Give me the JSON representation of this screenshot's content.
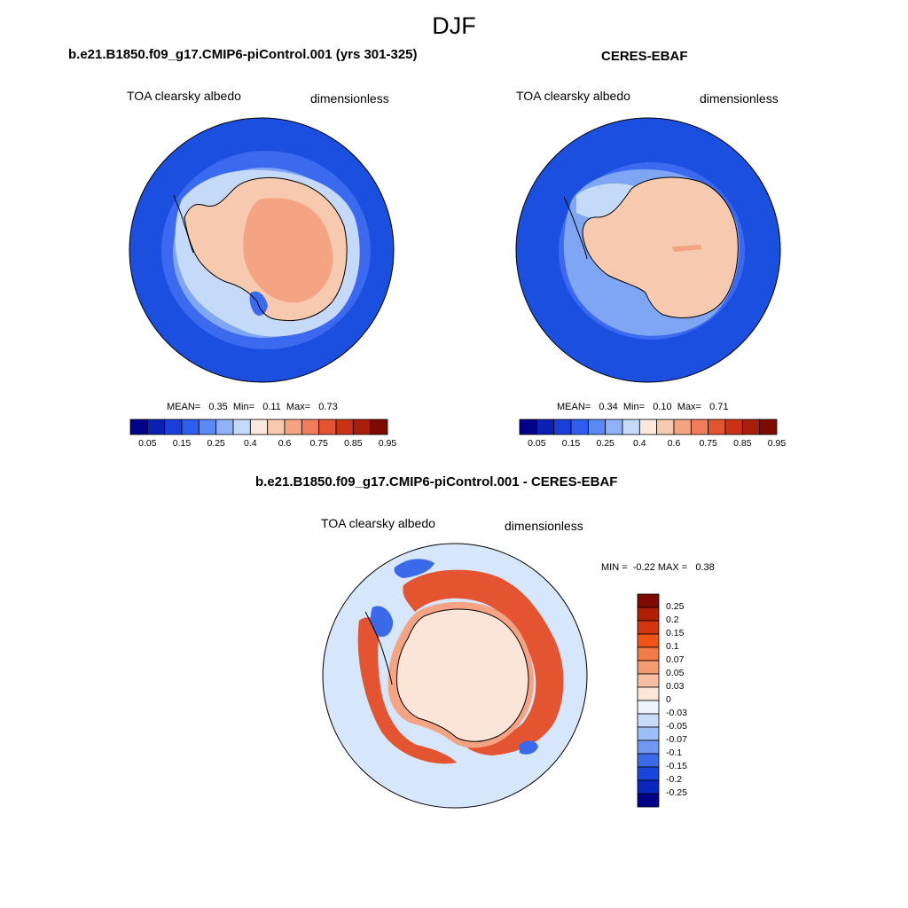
{
  "title": "DJF",
  "panels": {
    "model": {
      "title": "b.e21.B1850.f09_g17.CMIP6-piControl.001 (yrs 301-325)",
      "variable": "TOA clearsky albedo",
      "units": "dimensionless",
      "stats": "MEAN=   0.35  Min=   0.11  Max=   0.73"
    },
    "obs": {
      "title": "CERES-EBAF",
      "variable": "TOA clearsky albedo",
      "units": "dimensionless",
      "stats": "MEAN=   0.34  Min=   0.10  Max=   0.71"
    },
    "diff": {
      "title": "b.e21.B1850.f09_g17.CMIP6-piControl.001 - CERES-EBAF",
      "variable": "TOA clearsky albedo",
      "units": "dimensionless",
      "stats": "MIN =  -0.22 MAX =   0.38"
    }
  },
  "colorbars": {
    "abs_colors": [
      "#00008b",
      "#0a1fb4",
      "#1a3ed8",
      "#2d5ef0",
      "#5a88f5",
      "#8fb1f7",
      "#c5d9f8",
      "#fbe8dc",
      "#f7c9ae",
      "#f4a482",
      "#ef7d59",
      "#e55431",
      "#cc3316",
      "#a91d0b",
      "#7f0a00"
    ],
    "abs_labels": [
      "0.05",
      "0.15",
      "0.25",
      "0.4",
      "0.6",
      "0.75",
      "0.85",
      "0.95"
    ],
    "diff_colors": [
      "#7f0a00",
      "#b01e06",
      "#d3360c",
      "#f05316",
      "#f47a45",
      "#f59b72",
      "#f7bea1",
      "#fbe5d8",
      "#ecf4fd",
      "#c8dcf8",
      "#9cbef6",
      "#6f98f2",
      "#3a6aea",
      "#1a46dc",
      "#0a26be",
      "#00008b"
    ],
    "diff_labels": [
      "0.25",
      "0.2",
      "0.15",
      "0.1",
      "0.07",
      "0.05",
      "0.03",
      "0",
      "-0.03",
      "-0.05",
      "-0.07",
      "-0.1",
      "-0.15",
      "-0.2",
      "-0.25"
    ]
  },
  "map_colors": {
    "ocean_far": "#1a4fe0",
    "ocean_mid": "#3b6af0",
    "ocean_near": "#7fa5f5",
    "sea_ice": "#c5d9f8",
    "coast_band": "#fbe8dc",
    "continent": "#f7c9ae",
    "plateau": "#f4a482",
    "diff_bg": "#d6e6fb",
    "diff_pos_strong": "#e55431",
    "diff_pos": "#f4a482",
    "diff_pos_light": "#fbe5d8",
    "diff_neg": "#3a6aea"
  }
}
